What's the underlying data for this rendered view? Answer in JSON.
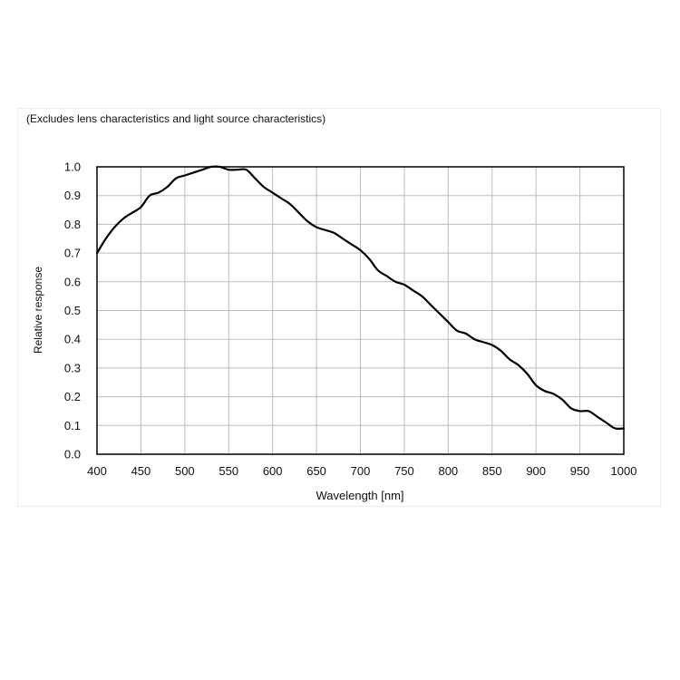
{
  "chart_data": {
    "type": "line",
    "note": "(Excludes lens characteristics and light source characteristics)",
    "xlabel": "Wavelength [nm]",
    "ylabel": "Relative response",
    "xlim": [
      400,
      1000
    ],
    "ylim": [
      0.0,
      1.0
    ],
    "x_ticks": [
      "400",
      "450",
      "500",
      "550",
      "600",
      "650",
      "700",
      "750",
      "800",
      "850",
      "900",
      "950",
      "1000"
    ],
    "y_ticks": [
      "0.0",
      "0.1",
      "0.2",
      "0.3",
      "0.4",
      "0.5",
      "0.6",
      "0.7",
      "0.8",
      "0.9",
      "1.0"
    ],
    "grid": true,
    "series": [
      {
        "color": "#000000",
        "x": [
          400,
          410,
          420,
          430,
          440,
          450,
          460,
          470,
          480,
          490,
          500,
          510,
          520,
          530,
          540,
          550,
          560,
          570,
          580,
          590,
          600,
          610,
          620,
          630,
          640,
          650,
          660,
          670,
          680,
          690,
          700,
          710,
          720,
          730,
          740,
          750,
          760,
          770,
          780,
          790,
          800,
          810,
          820,
          830,
          840,
          850,
          860,
          870,
          880,
          890,
          900,
          910,
          920,
          930,
          940,
          950,
          960,
          970,
          980,
          990,
          1000
        ],
        "y": [
          0.7,
          0.75,
          0.79,
          0.82,
          0.84,
          0.86,
          0.9,
          0.91,
          0.93,
          0.96,
          0.97,
          0.98,
          0.99,
          1.0,
          1.0,
          0.99,
          0.99,
          0.99,
          0.96,
          0.93,
          0.91,
          0.89,
          0.87,
          0.84,
          0.81,
          0.79,
          0.78,
          0.77,
          0.75,
          0.73,
          0.71,
          0.68,
          0.64,
          0.62,
          0.6,
          0.59,
          0.57,
          0.55,
          0.52,
          0.49,
          0.46,
          0.43,
          0.42,
          0.4,
          0.39,
          0.38,
          0.36,
          0.33,
          0.31,
          0.28,
          0.24,
          0.22,
          0.21,
          0.19,
          0.16,
          0.15,
          0.15,
          0.13,
          0.11,
          0.09,
          0.09
        ]
      }
    ]
  }
}
